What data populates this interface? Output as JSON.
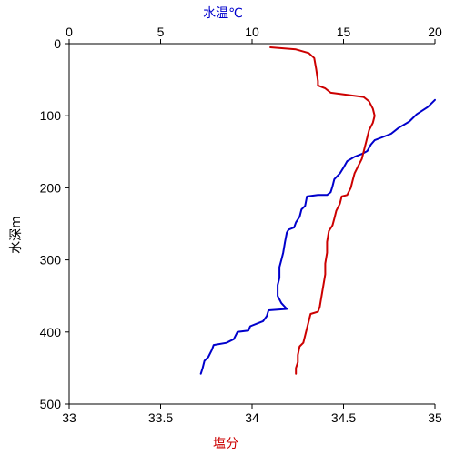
{
  "chart_data": {
    "type": "line",
    "top_axis": {
      "label": "水温℃",
      "range": [
        0,
        20
      ],
      "ticks": [
        "0",
        "5",
        "10",
        "15",
        "20"
      ]
    },
    "bottom_axis": {
      "label": "塩分",
      "range": [
        33,
        35
      ],
      "ticks": [
        "33",
        "33.5",
        "34",
        "34.5",
        "35"
      ]
    },
    "y_axis": {
      "label": "水深m",
      "range": [
        0,
        500
      ],
      "inverted": true,
      "ticks": [
        "0",
        "100",
        "200",
        "300",
        "400",
        "500"
      ]
    },
    "grid": false,
    "series": [
      {
        "axis": "top",
        "color": "#0000cc",
        "points": [
          [
            20.0,
            78
          ],
          [
            19.6,
            88
          ],
          [
            19.0,
            98
          ],
          [
            18.6,
            108
          ],
          [
            18.0,
            117
          ],
          [
            17.6,
            125
          ],
          [
            17.1,
            130
          ],
          [
            16.7,
            134
          ],
          [
            16.5,
            140
          ],
          [
            16.3,
            149
          ],
          [
            16.0,
            153
          ],
          [
            15.6,
            157
          ],
          [
            15.2,
            163
          ],
          [
            15.0,
            172
          ],
          [
            14.8,
            180
          ],
          [
            14.5,
            188
          ],
          [
            14.4,
            198
          ],
          [
            14.3,
            206
          ],
          [
            14.1,
            210
          ],
          [
            13.6,
            210
          ],
          [
            13.0,
            212
          ],
          [
            12.9,
            225
          ],
          [
            12.7,
            230
          ],
          [
            12.6,
            240
          ],
          [
            12.4,
            248
          ],
          [
            12.3,
            255
          ],
          [
            12.0,
            258
          ],
          [
            11.9,
            262
          ],
          [
            11.8,
            275
          ],
          [
            11.7,
            290
          ],
          [
            11.6,
            300
          ],
          [
            11.5,
            310
          ],
          [
            11.5,
            325
          ],
          [
            11.4,
            335
          ],
          [
            11.4,
            350
          ],
          [
            11.6,
            360
          ],
          [
            11.9,
            368
          ],
          [
            10.9,
            370
          ],
          [
            10.8,
            378
          ],
          [
            10.6,
            385
          ],
          [
            10.3,
            388
          ],
          [
            9.9,
            392
          ],
          [
            9.8,
            398
          ],
          [
            9.2,
            400
          ],
          [
            9.0,
            410
          ],
          [
            8.6,
            415
          ],
          [
            7.9,
            418
          ],
          [
            7.8,
            425
          ],
          [
            7.6,
            435
          ],
          [
            7.4,
            440
          ],
          [
            7.3,
            450
          ],
          [
            7.2,
            458
          ]
        ]
      },
      {
        "axis": "bottom",
        "color": "#cc0000",
        "points": [
          [
            34.1,
            5
          ],
          [
            34.24,
            8
          ],
          [
            34.31,
            13
          ],
          [
            34.34,
            20
          ],
          [
            34.35,
            35
          ],
          [
            34.36,
            52
          ],
          [
            34.36,
            58
          ],
          [
            34.4,
            62
          ],
          [
            34.43,
            68
          ],
          [
            34.52,
            71
          ],
          [
            34.61,
            74
          ],
          [
            34.64,
            80
          ],
          [
            34.66,
            90
          ],
          [
            34.67,
            100
          ],
          [
            34.66,
            110
          ],
          [
            34.64,
            120
          ],
          [
            34.63,
            130
          ],
          [
            34.62,
            140
          ],
          [
            34.61,
            150
          ],
          [
            34.6,
            160
          ],
          [
            34.58,
            170
          ],
          [
            34.56,
            180
          ],
          [
            34.55,
            190
          ],
          [
            34.54,
            200
          ],
          [
            34.52,
            210
          ],
          [
            34.49,
            212
          ],
          [
            34.48,
            222
          ],
          [
            34.46,
            232
          ],
          [
            34.45,
            242
          ],
          [
            34.44,
            252
          ],
          [
            34.42,
            260
          ],
          [
            34.41,
            275
          ],
          [
            34.41,
            290
          ],
          [
            34.4,
            305
          ],
          [
            34.4,
            320
          ],
          [
            34.39,
            335
          ],
          [
            34.38,
            350
          ],
          [
            34.37,
            365
          ],
          [
            34.36,
            372
          ],
          [
            34.32,
            375
          ],
          [
            34.31,
            385
          ],
          [
            34.3,
            395
          ],
          [
            34.29,
            405
          ],
          [
            34.28,
            415
          ],
          [
            34.26,
            420
          ],
          [
            34.25,
            432
          ],
          [
            34.25,
            442
          ],
          [
            34.24,
            450
          ],
          [
            34.24,
            458
          ]
        ]
      }
    ]
  }
}
